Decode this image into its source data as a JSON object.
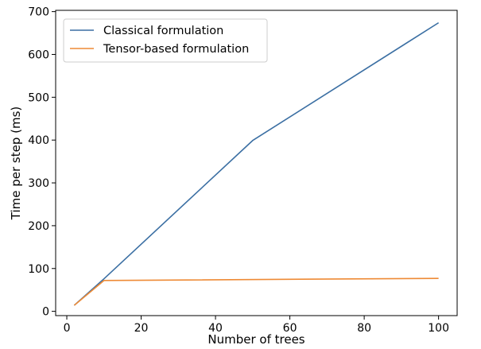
{
  "chart_data": {
    "type": "line",
    "title": "",
    "xlabel": "Number of trees",
    "ylabel": "Time per step (ms)",
    "xlim": [
      -3,
      105
    ],
    "ylim": [
      -10,
      703
    ],
    "xticks": [
      0,
      20,
      40,
      60,
      80,
      100
    ],
    "yticks": [
      0,
      100,
      200,
      300,
      400,
      500,
      600,
      700
    ],
    "grid": false,
    "legend_position": "top-left",
    "series": [
      {
        "name": "Classical formulation",
        "color": "#3b6fa3",
        "x": [
          2,
          10,
          50,
          100
        ],
        "y": [
          14,
          76,
          399,
          674
        ]
      },
      {
        "name": "Tensor-based formulation",
        "color": "#ee8a35",
        "x": [
          2,
          10,
          100
        ],
        "y": [
          14,
          72,
          77
        ]
      }
    ]
  }
}
